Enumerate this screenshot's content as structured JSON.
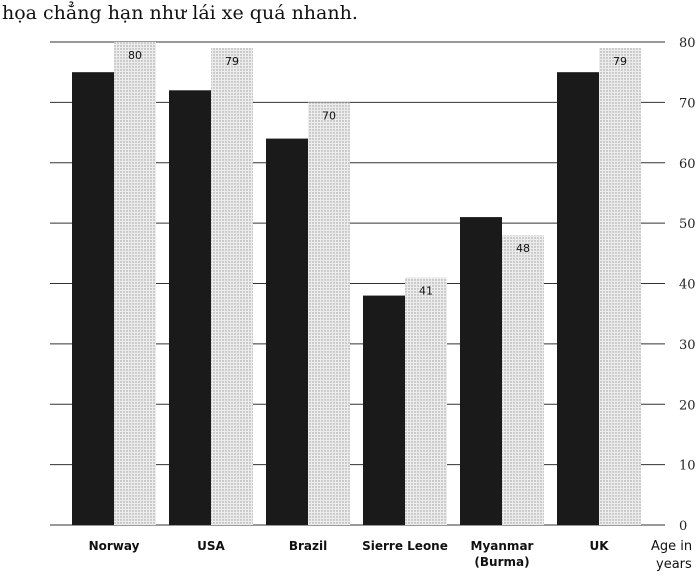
{
  "page": {
    "heading": "họa chẳng hạn như lái xe quá nhanh."
  },
  "chart_data": {
    "type": "bar",
    "categories": [
      "Norway",
      "USA",
      "Brazil",
      "Sierre Leone",
      "Myanmar\n(Burma)",
      "UK"
    ],
    "series": [
      {
        "values": [
          75,
          72,
          64,
          38,
          51,
          75
        ]
      },
      {
        "values": [
          80,
          79,
          70,
          41,
          48,
          79
        ]
      }
    ],
    "data_labels": [
      "80",
      "79",
      "70",
      "41",
      "48",
      "79"
    ],
    "ylabel": "Age in\nyears",
    "ylim": [
      0,
      80
    ],
    "yticks": [
      "0",
      "10",
      "20",
      "30",
      "40",
      "50",
      "60",
      "70",
      "80"
    ],
    "grid": true,
    "colors": {
      "bar_dark": "#1a1a1a",
      "bar_light": "#d9d9d9",
      "grid": "#333333"
    }
  }
}
